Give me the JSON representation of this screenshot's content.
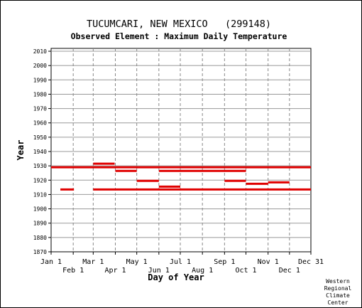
{
  "chart_data": {
    "type": "bar",
    "title": "TUCUMCARI, NEW MEXICO   (299148)",
    "subtitle": "Observed Element : Maximum Daily Temperature",
    "xlabel": "Day of Year",
    "ylabel": "Year",
    "ylim": [
      1870,
      2012
    ],
    "yticks": [
      1870,
      1880,
      1890,
      1900,
      1910,
      1920,
      1930,
      1940,
      1950,
      1960,
      1970,
      1980,
      1990,
      2000,
      2010
    ],
    "xlim": [
      1,
      365
    ],
    "month_ticks": [
      {
        "label": "Jan 1",
        "day": 1,
        "row": "upper"
      },
      {
        "label": "Feb 1",
        "day": 32,
        "row": "lower"
      },
      {
        "label": "Mar 1",
        "day": 60,
        "row": "upper"
      },
      {
        "label": "Apr 1",
        "day": 91,
        "row": "lower"
      },
      {
        "label": "May 1",
        "day": 121,
        "row": "upper"
      },
      {
        "label": "Jun 1",
        "day": 152,
        "row": "lower"
      },
      {
        "label": "Jul 1",
        "day": 182,
        "row": "upper"
      },
      {
        "label": "Aug 1",
        "day": 213,
        "row": "lower"
      },
      {
        "label": "Sep 1",
        "day": 244,
        "row": "upper"
      },
      {
        "label": "Oct 1",
        "day": 274,
        "row": "lower"
      },
      {
        "label": "Nov 1",
        "day": 305,
        "row": "upper"
      },
      {
        "label": "Dec 1",
        "day": 335,
        "row": "lower"
      },
      {
        "label": "Dec 31",
        "day": 365,
        "row": "upper"
      }
    ],
    "grid": true,
    "series_color": "#e00000",
    "segments": [
      {
        "year": 1929,
        "start": 1,
        "end": 365
      },
      {
        "year": 1913.5,
        "start": 14,
        "end": 33
      },
      {
        "year": 1913.5,
        "start": 60,
        "end": 365
      },
      {
        "year": 1931.5,
        "start": 60,
        "end": 90
      },
      {
        "year": 1926.5,
        "start": 91,
        "end": 121
      },
      {
        "year": 1919.5,
        "start": 121,
        "end": 152
      },
      {
        "year": 1926.5,
        "start": 152,
        "end": 274
      },
      {
        "year": 1915.5,
        "start": 152,
        "end": 182
      },
      {
        "year": 1919.5,
        "start": 244,
        "end": 274
      },
      {
        "year": 1917.5,
        "start": 274,
        "end": 305
      },
      {
        "year": 1918.5,
        "start": 305,
        "end": 335
      }
    ]
  },
  "credit": [
    "Western",
    "Regional",
    "Climate",
    "Center"
  ]
}
